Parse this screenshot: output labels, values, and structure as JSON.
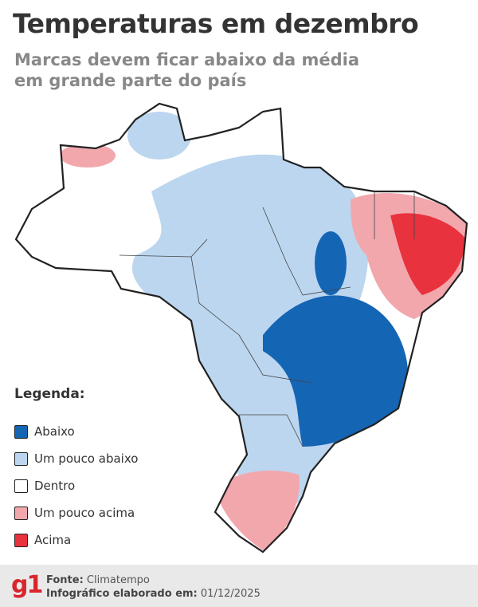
{
  "header": {
    "title": "Temperaturas em dezembro",
    "subtitle_lines": [
      "Marcas devem ficar abaixo da média",
      "em grande parte do país"
    ]
  },
  "legend": {
    "title": "Legenda:",
    "items": [
      {
        "label": "Abaixo",
        "color": "#1565b5"
      },
      {
        "label": "Um pouco abaixo",
        "color": "#bcd6ef"
      },
      {
        "label": "Dentro",
        "color": "#ffffff"
      },
      {
        "label": "Um pouco acima",
        "color": "#f2a7ad"
      },
      {
        "label": "Acima",
        "color": "#e8323d"
      }
    ]
  },
  "footer": {
    "logo": "g1",
    "source_label": "Fonte:",
    "source": "Climatempo",
    "date_label": "Infográfico elaborado em:",
    "date": "01/12/2025"
  }
}
